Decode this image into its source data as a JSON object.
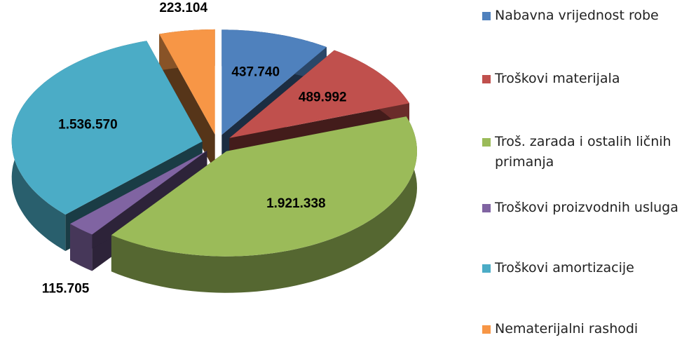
{
  "chart_data": {
    "type": "pie3d",
    "series": [
      {
        "name": "Nabavna vrijednost robe",
        "color": "#4f81bd"
      },
      {
        "name": "Troškovi materijala",
        "color": "#c0504d"
      },
      {
        "name": "Troš. zarada i ostalih ličnih primanja",
        "color": "#9bbb59"
      },
      {
        "name": "Troškovi proizvodnih usluga",
        "color": "#8064a2"
      },
      {
        "name": "Troškovi amortizacije",
        "color": "#4bacc6"
      },
      {
        "name": "Nematerijalni rashodi",
        "color": "#f79646"
      }
    ],
    "values": [
      437740,
      489992,
      1921338,
      115705,
      1536570,
      223104
    ],
    "value_labels": [
      "437.740",
      "489.992",
      "1.921.338",
      "115.705",
      "1.536.570",
      "223.104"
    ],
    "legend": "right"
  }
}
